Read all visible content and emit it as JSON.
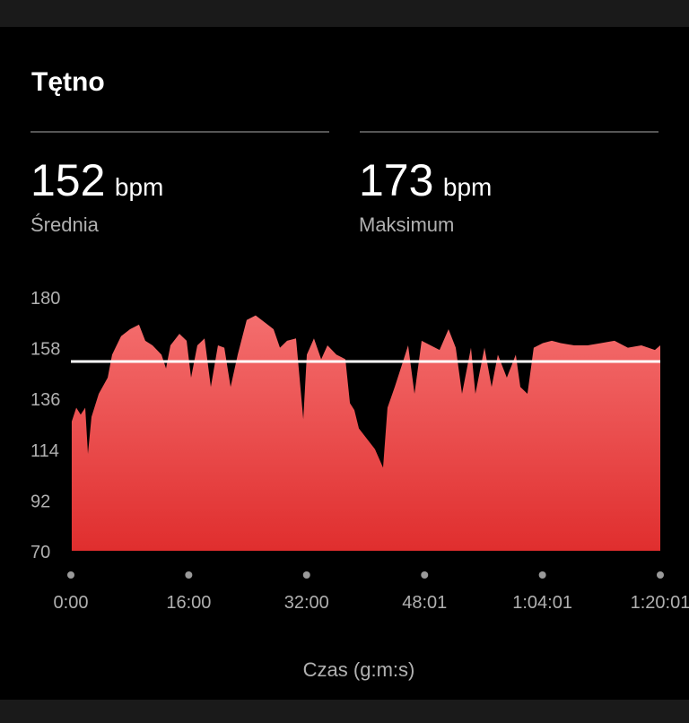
{
  "title": "Tętno",
  "stats": [
    {
      "value": 152,
      "unit": "bpm",
      "label": "Średnia"
    },
    {
      "value": 173,
      "unit": "bpm",
      "label": "Maksimum"
    }
  ],
  "chart_data": {
    "type": "area",
    "x_label": "Czas (g:m:s)",
    "color_top": "#f46e6e",
    "color_bottom": "#e02e2e",
    "x": [
      7,
      44,
      80,
      117,
      139,
      168,
      227,
      300,
      336,
      409,
      482,
      555,
      606,
      665,
      738,
      775,
      811,
      884,
      943,
      979,
      1030,
      1089,
      1140,
      1198,
      1250,
      1301,
      1359,
      1432,
      1505,
      1578,
      1651,
      1703,
      1761,
      1834,
      1893,
      1922,
      1980,
      2039,
      2090,
      2163,
      2236,
      2273,
      2309,
      2346,
      2419,
      2477,
      2543,
      2579,
      2638,
      2711,
      2747,
      2799,
      2857,
      2930,
      3003,
      3076,
      3135,
      3186,
      3259,
      3295,
      3369,
      3427,
      3478,
      3551,
      3624,
      3661,
      3719,
      3770,
      3844,
      3917,
      3990,
      4099,
      4209,
      4318,
      4428,
      4537,
      4647,
      4757,
      4801
    ],
    "values": [
      126,
      132,
      129,
      132,
      112,
      128,
      138,
      145,
      155,
      163,
      166,
      168,
      161,
      159,
      155,
      149,
      159,
      164,
      161,
      145,
      159,
      162,
      141,
      159,
      158,
      141,
      155,
      170,
      172,
      169,
      166,
      158,
      161,
      162,
      127,
      155,
      162,
      153,
      159,
      155,
      153,
      134,
      131,
      123,
      118,
      114,
      106,
      132,
      141,
      153,
      159,
      138,
      161,
      159,
      157,
      166,
      158,
      138,
      158,
      138,
      158,
      141,
      155,
      145,
      155,
      141,
      138,
      158,
      160,
      161,
      160,
      159,
      159,
      160,
      161,
      158,
      159,
      157,
      159
    ],
    "xlim": [
      0,
      4801
    ],
    "xticks": [
      {
        "value": 0,
        "label": "0:00"
      },
      {
        "value": 960,
        "label": "16:00"
      },
      {
        "value": 1920,
        "label": "32:00"
      },
      {
        "value": 2881,
        "label": "48:01"
      },
      {
        "value": 3841,
        "label": "1:04:01"
      },
      {
        "value": 4801,
        "label": "1:20:01"
      }
    ],
    "ylim": [
      70,
      180
    ],
    "yticks": [
      70,
      92,
      114,
      136,
      158,
      180
    ]
  }
}
